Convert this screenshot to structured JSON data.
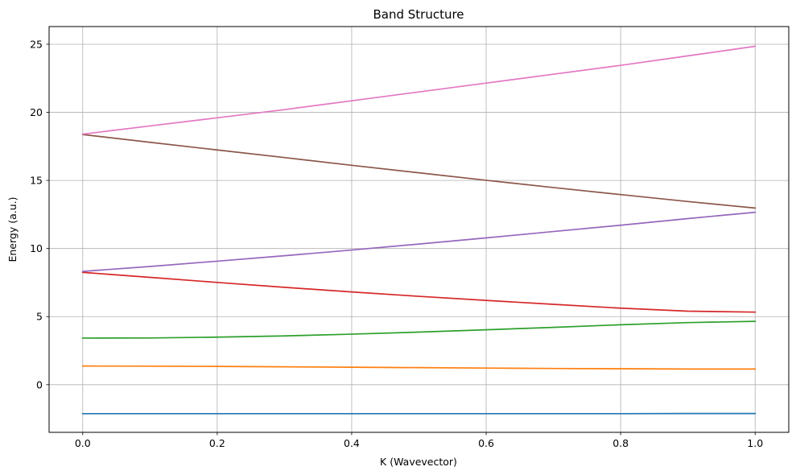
{
  "chart_data": {
    "type": "line",
    "title": "Band Structure",
    "xlabel": "K (Wavevector)",
    "ylabel": "Energy (a.u.)",
    "xlim": [
      -0.05,
      1.05
    ],
    "ylim": [
      -3.5,
      26.3
    ],
    "xticks": [
      0.0,
      0.2,
      0.4,
      0.6,
      0.8,
      1.0
    ],
    "xtick_labels": [
      "0.0",
      "0.2",
      "0.4",
      "0.6",
      "0.8",
      "1.0"
    ],
    "yticks": [
      0,
      5,
      10,
      15,
      20,
      25
    ],
    "ytick_labels": [
      "0",
      "5",
      "10",
      "15",
      "20",
      "25"
    ],
    "grid": true,
    "x": [
      0.0,
      0.1,
      0.2,
      0.3,
      0.4,
      0.5,
      0.6,
      0.7,
      0.8,
      0.9,
      1.0
    ],
    "series": [
      {
        "color": "#1f77b4",
        "values": [
          -2.13,
          -2.13,
          -2.13,
          -2.13,
          -2.13,
          -2.13,
          -2.13,
          -2.13,
          -2.13,
          -2.12,
          -2.12
        ]
      },
      {
        "color": "#ff7f0e",
        "values": [
          1.37,
          1.36,
          1.34,
          1.31,
          1.28,
          1.25,
          1.22,
          1.19,
          1.17,
          1.15,
          1.15
        ]
      },
      {
        "color": "#2ca02c",
        "values": [
          3.42,
          3.43,
          3.49,
          3.58,
          3.71,
          3.86,
          4.03,
          4.21,
          4.4,
          4.56,
          4.65
        ]
      },
      {
        "color": "#d62728",
        "values": [
          8.25,
          7.88,
          7.51,
          7.15,
          6.81,
          6.49,
          6.19,
          5.9,
          5.62,
          5.4,
          5.33
        ]
      },
      {
        "color": "#9467bd",
        "values": [
          8.32,
          8.68,
          9.07,
          9.47,
          9.89,
          10.33,
          10.78,
          11.25,
          11.71,
          12.2,
          12.66
        ]
      },
      {
        "color": "#8c564b",
        "values": [
          18.37,
          17.8,
          17.24,
          16.68,
          16.11,
          15.56,
          15.01,
          14.48,
          13.96,
          13.45,
          12.97
        ]
      },
      {
        "color": "#e377c2",
        "values": [
          18.4,
          19.0,
          19.6,
          20.2,
          20.85,
          21.5,
          22.15,
          22.8,
          23.45,
          24.15,
          24.85
        ]
      }
    ]
  }
}
